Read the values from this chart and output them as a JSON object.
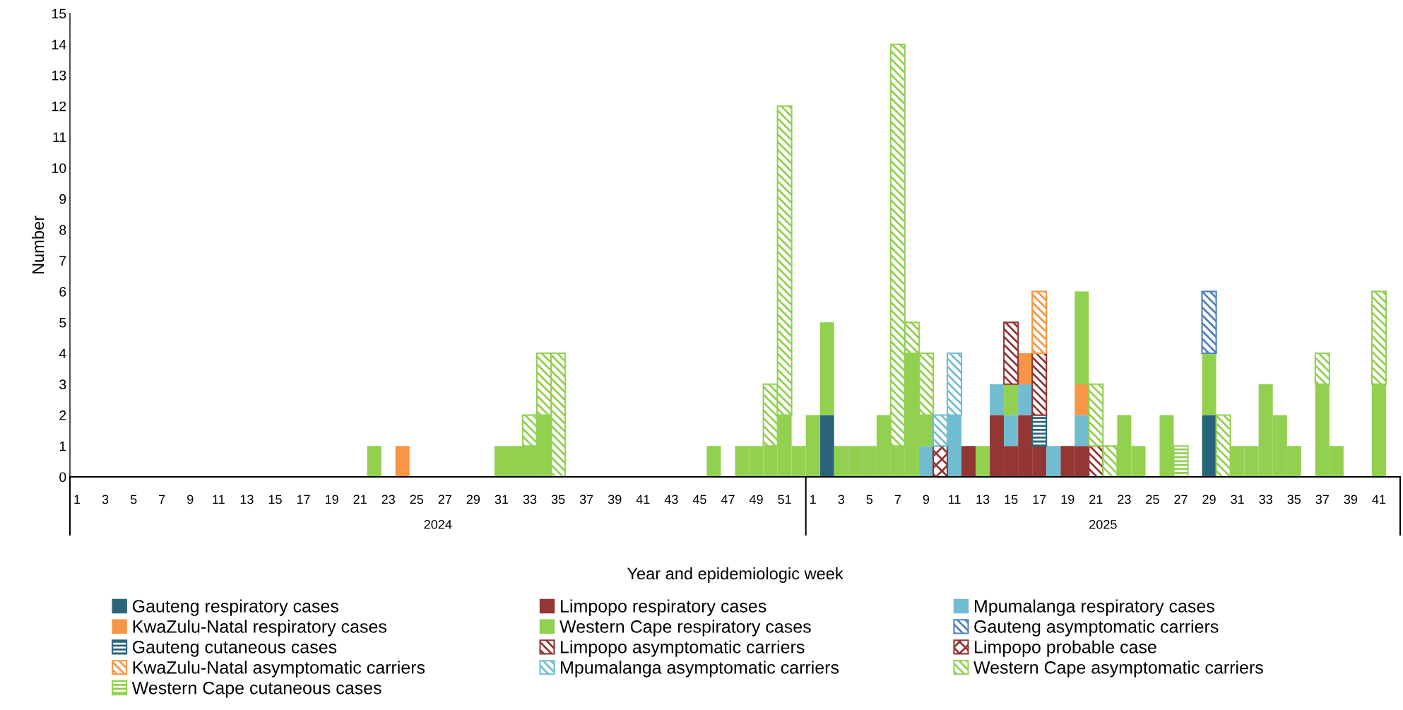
{
  "chart_data": {
    "type": "bar",
    "stacked": true,
    "xlabel": "Year and epidemiologic week",
    "ylabel": "Number",
    "categories": [
      "1",
      null,
      "3",
      null,
      "5",
      null,
      "7",
      null,
      "9",
      null,
      "11",
      null,
      "13",
      null,
      "15",
      null,
      "17",
      null,
      "19",
      null,
      "21",
      null,
      "23",
      null,
      "25",
      null,
      "27",
      null,
      "29",
      null,
      "31",
      null,
      "33",
      null,
      "35",
      null,
      "37",
      null,
      "39",
      null,
      "41",
      null,
      "43",
      null,
      "45",
      null,
      "47",
      null,
      "49",
      null,
      "51",
      null,
      "1",
      null,
      "3",
      null,
      "5",
      null,
      "7",
      null,
      "9",
      null,
      "11",
      null,
      "13",
      null,
      "15",
      null,
      "17",
      null,
      "19",
      null,
      "21",
      null,
      "23",
      null,
      "25",
      null,
      "27",
      null,
      "29",
      null,
      "31",
      null,
      "33",
      null,
      "35",
      null,
      "37",
      null,
      "39",
      null,
      "41",
      null
    ],
    "annotations": [
      "2024",
      "2025"
    ],
    "ylim": [
      0,
      15
    ],
    "yticks": [
      0,
      1,
      2,
      3,
      4,
      5,
      6,
      7,
      8,
      9,
      10,
      11,
      12,
      13,
      14,
      15
    ],
    "legend": "bottom",
    "series": [
      {
        "name": "Gauteng respiratory cases",
        "color": "#2a6478",
        "values": [
          null,
          null,
          null,
          null,
          null,
          null,
          null,
          null,
          null,
          null,
          null,
          null,
          null,
          null,
          null,
          null,
          null,
          null,
          null,
          null,
          null,
          null,
          null,
          null,
          null,
          null,
          null,
          null,
          null,
          null,
          null,
          null,
          null,
          null,
          null,
          null,
          null,
          null,
          null,
          null,
          null,
          null,
          null,
          null,
          null,
          null,
          null,
          null,
          null,
          null,
          null,
          null,
          null,
          2,
          null,
          null,
          null,
          null,
          null,
          null,
          null,
          null,
          null,
          null,
          null,
          null,
          null,
          null,
          null,
          null,
          null,
          null,
          null,
          null,
          null,
          null,
          null,
          null,
          null,
          null,
          2,
          null,
          null,
          null,
          null,
          null,
          null,
          null,
          null,
          null,
          null,
          null,
          null,
          null
        ]
      },
      {
        "name": "Limpopo respiratory cases",
        "color": "#943634",
        "values": [
          null,
          null,
          null,
          null,
          null,
          null,
          null,
          null,
          null,
          null,
          null,
          null,
          null,
          null,
          null,
          null,
          null,
          null,
          null,
          null,
          null,
          null,
          null,
          null,
          null,
          null,
          null,
          null,
          null,
          null,
          null,
          null,
          null,
          null,
          null,
          null,
          null,
          null,
          null,
          null,
          null,
          null,
          null,
          null,
          null,
          null,
          null,
          null,
          null,
          null,
          null,
          null,
          null,
          null,
          null,
          null,
          null,
          null,
          null,
          null,
          null,
          null,
          null,
          1,
          null,
          2,
          1,
          2,
          1,
          null,
          1,
          1,
          null,
          null,
          null,
          null,
          null,
          null,
          null,
          null,
          null,
          null,
          null,
          null,
          null,
          null,
          null,
          null,
          null,
          null,
          null,
          null,
          null,
          null
        ]
      },
      {
        "name": "Mpumalanga respiratory cases",
        "color": "#70bdd2",
        "values": [
          null,
          null,
          null,
          null,
          null,
          null,
          null,
          null,
          null,
          null,
          null,
          null,
          null,
          null,
          null,
          null,
          null,
          null,
          null,
          null,
          null,
          null,
          null,
          null,
          null,
          null,
          null,
          null,
          null,
          null,
          null,
          null,
          null,
          null,
          null,
          null,
          null,
          null,
          null,
          null,
          null,
          null,
          null,
          null,
          null,
          null,
          null,
          null,
          null,
          null,
          null,
          null,
          null,
          null,
          null,
          null,
          null,
          null,
          null,
          null,
          1,
          null,
          2,
          null,
          null,
          1,
          1,
          1,
          null,
          1,
          null,
          1,
          null,
          null,
          null,
          null,
          null,
          null,
          null,
          null,
          null,
          null,
          null,
          null,
          null,
          null,
          null,
          null,
          null,
          null,
          null,
          null,
          null,
          null
        ]
      },
      {
        "name": "KwaZulu-Natal respiratory cases",
        "color": "#f79646",
        "values": [
          null,
          null,
          null,
          null,
          null,
          null,
          null,
          null,
          null,
          null,
          null,
          null,
          null,
          null,
          null,
          null,
          null,
          null,
          null,
          null,
          null,
          null,
          null,
          1,
          null,
          null,
          null,
          null,
          null,
          null,
          null,
          null,
          null,
          null,
          null,
          null,
          null,
          null,
          null,
          null,
          null,
          null,
          null,
          null,
          null,
          null,
          null,
          null,
          null,
          null,
          null,
          null,
          null,
          null,
          null,
          null,
          null,
          null,
          null,
          null,
          null,
          null,
          null,
          null,
          null,
          null,
          null,
          1,
          null,
          null,
          null,
          1,
          null,
          null,
          null,
          null,
          null,
          null,
          null,
          null,
          null,
          null,
          null,
          null,
          null,
          null,
          null,
          null,
          null,
          null,
          null,
          null,
          null,
          null
        ]
      },
      {
        "name": "Western Cape respiratory cases",
        "color": "#92d050",
        "values": [
          null,
          null,
          null,
          null,
          null,
          null,
          null,
          null,
          null,
          null,
          null,
          null,
          null,
          null,
          null,
          null,
          null,
          null,
          null,
          null,
          null,
          1,
          null,
          null,
          null,
          null,
          null,
          null,
          null,
          null,
          1,
          1,
          1,
          2,
          null,
          null,
          null,
          null,
          null,
          null,
          null,
          null,
          null,
          null,
          null,
          1,
          null,
          1,
          1,
          1,
          2,
          1,
          2,
          3,
          1,
          1,
          1,
          2,
          1,
          4,
          1,
          null,
          null,
          null,
          1,
          null,
          1,
          null,
          null,
          null,
          null,
          3,
          null,
          null,
          2,
          1,
          null,
          2,
          null,
          null,
          2,
          null,
          1,
          1,
          3,
          2,
          1,
          null,
          3,
          1,
          null,
          null,
          3,
          null
        ]
      },
      {
        "name": "Gauteng asymptomatic carriers",
        "color": "#4f81bd",
        "values": [
          null,
          null,
          null,
          null,
          null,
          null,
          null,
          null,
          null,
          null,
          null,
          null,
          null,
          null,
          null,
          null,
          null,
          null,
          null,
          null,
          null,
          null,
          null,
          null,
          null,
          null,
          null,
          null,
          null,
          null,
          null,
          null,
          null,
          null,
          null,
          null,
          null,
          null,
          null,
          null,
          null,
          null,
          null,
          null,
          null,
          null,
          null,
          null,
          null,
          null,
          null,
          null,
          null,
          null,
          null,
          null,
          null,
          null,
          null,
          null,
          null,
          null,
          null,
          null,
          null,
          null,
          null,
          null,
          null,
          null,
          null,
          null,
          null,
          null,
          null,
          null,
          null,
          null,
          null,
          null,
          2,
          null,
          null,
          null,
          null,
          null,
          null,
          null,
          null,
          null,
          null,
          null,
          null,
          null
        ]
      },
      {
        "name": "Gauteng cutaneous cases",
        "color": "#2a6478",
        "values": [
          null,
          null,
          null,
          null,
          null,
          null,
          null,
          null,
          null,
          null,
          null,
          null,
          null,
          null,
          null,
          null,
          null,
          null,
          null,
          null,
          null,
          null,
          null,
          null,
          null,
          null,
          null,
          null,
          null,
          null,
          null,
          null,
          null,
          null,
          null,
          null,
          null,
          null,
          null,
          null,
          null,
          null,
          null,
          null,
          null,
          null,
          null,
          null,
          null,
          null,
          null,
          null,
          null,
          null,
          null,
          null,
          null,
          null,
          null,
          null,
          null,
          null,
          null,
          null,
          null,
          null,
          null,
          null,
          1,
          null,
          null,
          null,
          null,
          null,
          null,
          null,
          null,
          null,
          null,
          null,
          null,
          null,
          null,
          null,
          null,
          null,
          null,
          null,
          null,
          null,
          null,
          null,
          null,
          null
        ]
      },
      {
        "name": "Limpopo asymptomatic carriers",
        "color": "#943634",
        "values": [
          null,
          null,
          null,
          null,
          null,
          null,
          null,
          null,
          null,
          null,
          null,
          null,
          null,
          null,
          null,
          null,
          null,
          null,
          null,
          null,
          null,
          null,
          null,
          null,
          null,
          null,
          null,
          null,
          null,
          null,
          null,
          null,
          null,
          null,
          null,
          null,
          null,
          null,
          null,
          null,
          null,
          null,
          null,
          null,
          null,
          null,
          null,
          null,
          null,
          null,
          null,
          null,
          null,
          null,
          null,
          null,
          null,
          null,
          null,
          null,
          null,
          null,
          null,
          null,
          null,
          null,
          2,
          null,
          2,
          null,
          null,
          null,
          1,
          null,
          null,
          null,
          null,
          null,
          null,
          null,
          null,
          null,
          null,
          null,
          null,
          null,
          null,
          null,
          null,
          null,
          null,
          null,
          null,
          null
        ]
      },
      {
        "name": "Limpopo probable case",
        "color": "#943634",
        "values": [
          null,
          null,
          null,
          null,
          null,
          null,
          null,
          null,
          null,
          null,
          null,
          null,
          null,
          null,
          null,
          null,
          null,
          null,
          null,
          null,
          null,
          null,
          null,
          null,
          null,
          null,
          null,
          null,
          null,
          null,
          null,
          null,
          null,
          null,
          null,
          null,
          null,
          null,
          null,
          null,
          null,
          null,
          null,
          null,
          null,
          null,
          null,
          null,
          null,
          null,
          null,
          null,
          null,
          null,
          null,
          null,
          null,
          null,
          null,
          null,
          null,
          1,
          null,
          null,
          null,
          null,
          null,
          null,
          null,
          null,
          null,
          null,
          null,
          null,
          null,
          null,
          null,
          null,
          null,
          null,
          null,
          null,
          null,
          null,
          null,
          null,
          null,
          null,
          null,
          null,
          null,
          null,
          null,
          null
        ]
      },
      {
        "name": "KwaZulu-Natal asymptomatic carriers",
        "color": "#f79646",
        "values": [
          null,
          null,
          null,
          null,
          null,
          null,
          null,
          null,
          null,
          null,
          null,
          null,
          null,
          null,
          null,
          null,
          null,
          null,
          null,
          null,
          null,
          null,
          null,
          null,
          null,
          null,
          null,
          null,
          null,
          null,
          null,
          null,
          null,
          null,
          null,
          null,
          null,
          null,
          null,
          null,
          null,
          null,
          null,
          null,
          null,
          null,
          null,
          null,
          null,
          null,
          null,
          null,
          null,
          null,
          null,
          null,
          null,
          null,
          null,
          null,
          null,
          null,
          null,
          null,
          null,
          null,
          null,
          null,
          2,
          null,
          null,
          null,
          null,
          null,
          null,
          null,
          null,
          null,
          null,
          null,
          null,
          null,
          null,
          null,
          null,
          null,
          null,
          null,
          null,
          null,
          null,
          null,
          null,
          null
        ]
      },
      {
        "name": "Mpumalanga asymptomatic carriers",
        "color": "#70bdd2",
        "values": [
          null,
          null,
          null,
          null,
          null,
          null,
          null,
          null,
          null,
          null,
          null,
          null,
          null,
          null,
          null,
          null,
          null,
          null,
          null,
          null,
          null,
          null,
          null,
          null,
          null,
          null,
          null,
          null,
          null,
          null,
          null,
          null,
          null,
          null,
          null,
          null,
          null,
          null,
          null,
          null,
          null,
          null,
          null,
          null,
          null,
          null,
          null,
          null,
          null,
          null,
          null,
          null,
          null,
          null,
          null,
          null,
          null,
          null,
          null,
          null,
          null,
          1,
          2,
          null,
          null,
          null,
          null,
          null,
          null,
          null,
          null,
          null,
          null,
          null,
          null,
          null,
          null,
          null,
          null,
          null,
          null,
          null,
          null,
          null,
          null,
          null,
          null,
          null,
          null,
          null,
          null,
          null,
          null,
          null
        ]
      },
      {
        "name": "Western Cape asymptomatic carriers",
        "color": "#92d050",
        "values": [
          null,
          null,
          null,
          null,
          null,
          null,
          null,
          null,
          null,
          null,
          null,
          null,
          null,
          null,
          null,
          null,
          null,
          null,
          null,
          null,
          null,
          null,
          null,
          null,
          null,
          null,
          null,
          null,
          null,
          null,
          null,
          null,
          1,
          2,
          4,
          null,
          null,
          null,
          null,
          null,
          null,
          null,
          null,
          null,
          null,
          null,
          null,
          null,
          null,
          2,
          10,
          null,
          null,
          null,
          null,
          null,
          null,
          null,
          13,
          1,
          2,
          null,
          null,
          null,
          null,
          null,
          null,
          null,
          null,
          null,
          null,
          null,
          2,
          1,
          null,
          null,
          null,
          null,
          null,
          null,
          null,
          2,
          null,
          null,
          null,
          null,
          null,
          null,
          1,
          null,
          null,
          null,
          3,
          null
        ]
      },
      {
        "name": "Western Cape cutaneous cases",
        "color": "#92d050",
        "values": [
          null,
          null,
          null,
          null,
          null,
          null,
          null,
          null,
          null,
          null,
          null,
          null,
          null,
          null,
          null,
          null,
          null,
          null,
          null,
          null,
          null,
          null,
          null,
          null,
          null,
          null,
          null,
          null,
          null,
          null,
          null,
          null,
          null,
          null,
          null,
          null,
          null,
          null,
          null,
          null,
          null,
          null,
          null,
          null,
          null,
          null,
          null,
          null,
          null,
          null,
          null,
          null,
          null,
          null,
          null,
          null,
          null,
          null,
          null,
          null,
          null,
          null,
          null,
          null,
          null,
          null,
          null,
          null,
          null,
          null,
          null,
          null,
          null,
          null,
          null,
          null,
          null,
          null,
          1,
          null,
          null,
          null,
          null,
          null,
          null,
          null,
          null,
          null,
          null,
          null,
          null,
          null,
          null,
          null
        ]
      }
    ]
  }
}
